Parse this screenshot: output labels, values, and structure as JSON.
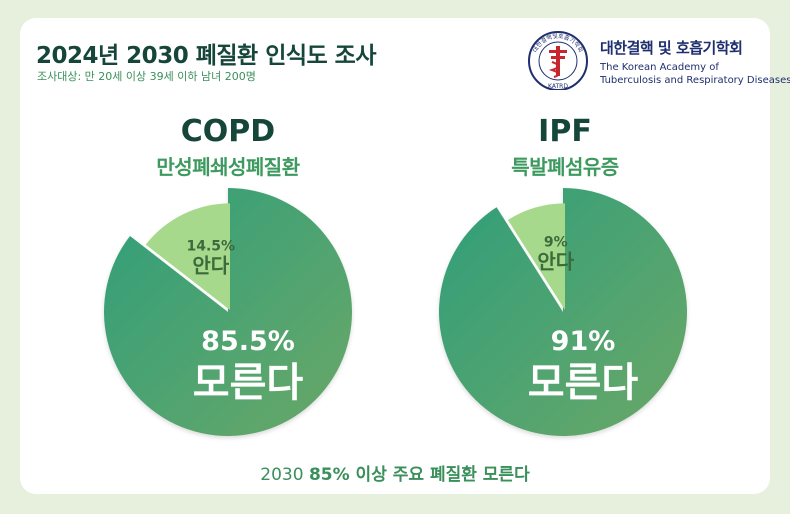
{
  "header": {
    "title": "2024년 2030 폐질환 인식도 조사",
    "subtitle": "조사대상: 만 20세 이상 39세 이하 남녀 200명"
  },
  "logo": {
    "name_ko": "대한결핵 및 호흡기학회",
    "name_en_line1": "The Korean Academy of",
    "name_en_line2": "Tuberculosis and Respiratory Diseases",
    "seal_text": "대한결핵및호흡기학회",
    "seal_abbr": "KATRD"
  },
  "colors": {
    "dark_green": "#16463a",
    "pie_large": "#4fa070",
    "pie_small": "#a6d98c",
    "accent": "#3d9a5e"
  },
  "chart_data": [
    {
      "type": "pie",
      "title": "COPD",
      "subtitle": "만성폐쇄성폐질환",
      "slices": [
        {
          "label": "모른다",
          "value": 85.5,
          "display": "85.5%"
        },
        {
          "label": "안다",
          "value": 14.5,
          "display": "14.5%"
        }
      ]
    },
    {
      "type": "pie",
      "title": "IPF",
      "subtitle": "특발폐섬유증",
      "slices": [
        {
          "label": "모른다",
          "value": 91,
          "display": "91%"
        },
        {
          "label": "안다",
          "value": 9,
          "display": "9%"
        }
      ]
    }
  ],
  "footer": {
    "prefix": "2030 ",
    "highlight": "85% 이상 주요 폐질환 모른다"
  }
}
